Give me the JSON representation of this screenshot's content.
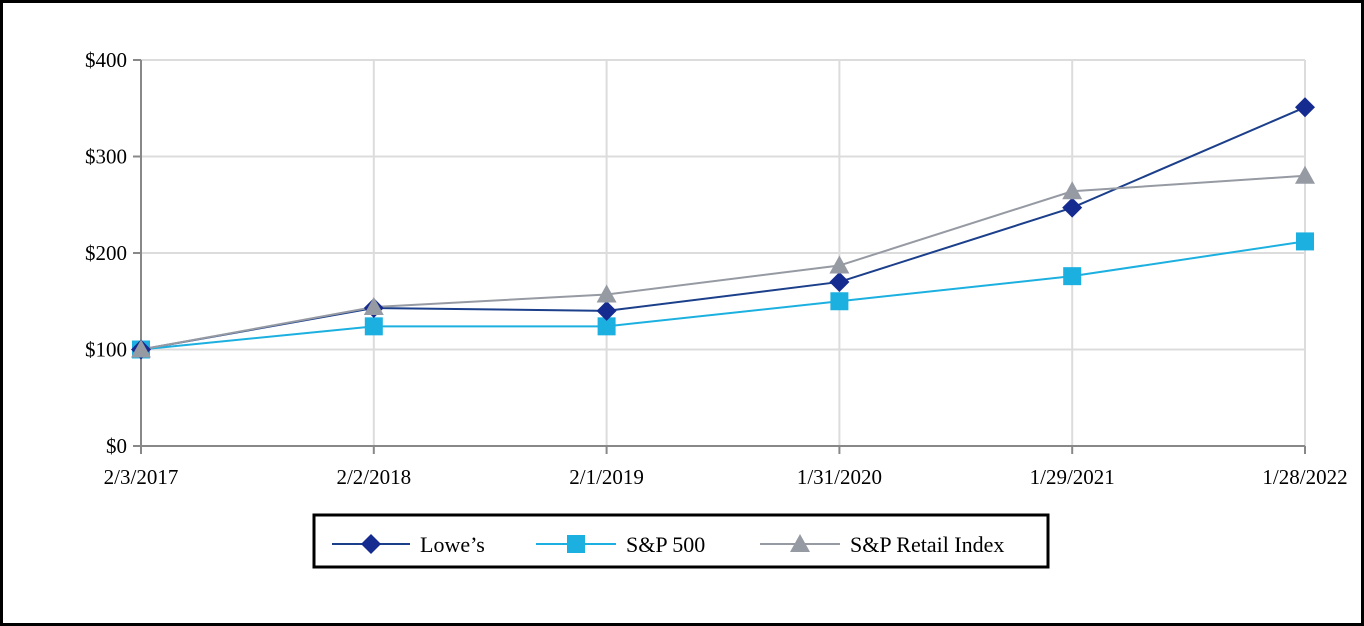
{
  "chart_data": {
    "type": "line",
    "title": "",
    "xlabel": "",
    "ylabel": "",
    "categories": [
      "2/3/2017",
      "2/2/2018",
      "2/1/2019",
      "1/31/2020",
      "1/29/2021",
      "1/28/2022"
    ],
    "ylim": [
      0,
      400
    ],
    "yticks": [
      {
        "value": 0,
        "label": "$0"
      },
      {
        "value": 100,
        "label": "$100"
      },
      {
        "value": 200,
        "label": "$200"
      },
      {
        "value": 300,
        "label": "$300"
      },
      {
        "value": 400,
        "label": "$400"
      }
    ],
    "grid": true,
    "legend_position": "bottom",
    "series": [
      {
        "name": "Lowe’s",
        "marker": "diamond",
        "color": "#1B3F8B",
        "marker_color": "#162B8F",
        "values": [
          100,
          143,
          140,
          170,
          247,
          351
        ]
      },
      {
        "name": "S&P 500",
        "marker": "square",
        "color": "#1CB0E0",
        "marker_color": "#1CB0E0",
        "values": [
          100,
          124,
          124,
          150,
          176,
          212
        ]
      },
      {
        "name": "S&P Retail Index",
        "marker": "triangle",
        "color": "#969AA3",
        "marker_color": "#969AA3",
        "values": [
          100,
          144,
          157,
          187,
          264,
          280
        ]
      }
    ]
  }
}
